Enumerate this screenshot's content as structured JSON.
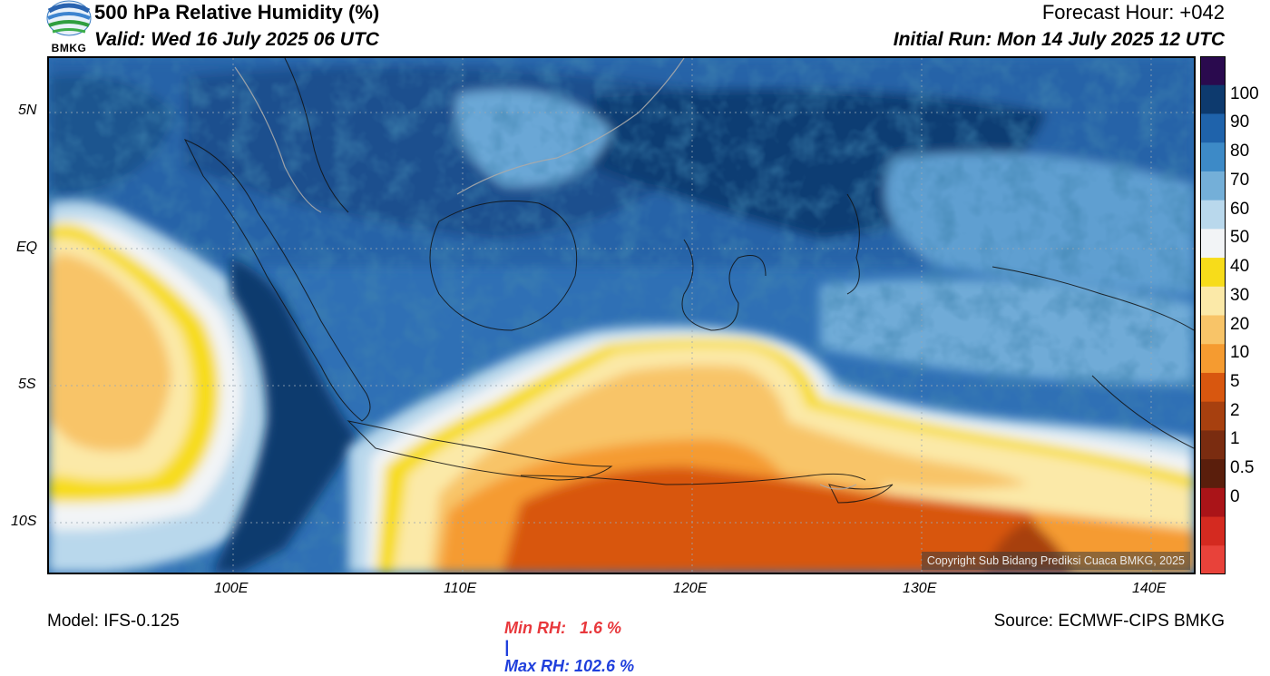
{
  "header": {
    "title": "500 hPa Relative Humidity (%)",
    "valid": "Valid: Wed 16 July 2025 06 UTC",
    "forecast_hour": "Forecast Hour: +042",
    "initial_run": "Initial Run: Mon 14 July 2025 12 UTC",
    "logo_text": "BMKG"
  },
  "map": {
    "lat_labels": [
      "5N",
      "EQ",
      "5S",
      "10S"
    ],
    "lon_labels": [
      "100E",
      "110E",
      "120E",
      "130E",
      "140E"
    ],
    "copyright": "Copyright Sub Bidang Prediksi Cuaca BMKG, 2025"
  },
  "colorbar": {
    "labels": [
      "100",
      "90",
      "80",
      "70",
      "60",
      "50",
      "40",
      "30",
      "20",
      "10",
      "5",
      "2",
      "1",
      "0.5",
      "0"
    ],
    "colors": [
      "#2a0a4e",
      "#0d3a6e",
      "#1f63ab",
      "#3d8ac7",
      "#74afd8",
      "#b9d8ec",
      "#f2f4f6",
      "#f7dc1a",
      "#fbe9a8",
      "#f8c468",
      "#f59b30",
      "#d8570f",
      "#a7400f",
      "#7a2c10",
      "#5a1e0c",
      "#aa1418",
      "#d42a20",
      "#e8423a"
    ]
  },
  "footer": {
    "model": "Model: IFS-0.125",
    "min_rh": "Min RH:   1.6 %",
    "separator": "|",
    "max_rh": "Max RH: 102.6 %",
    "source": "Source: ECMWF-CIPS BMKG"
  },
  "colors": {
    "min_rh": "#e8383c",
    "max_rh": "#1f3fdc"
  }
}
